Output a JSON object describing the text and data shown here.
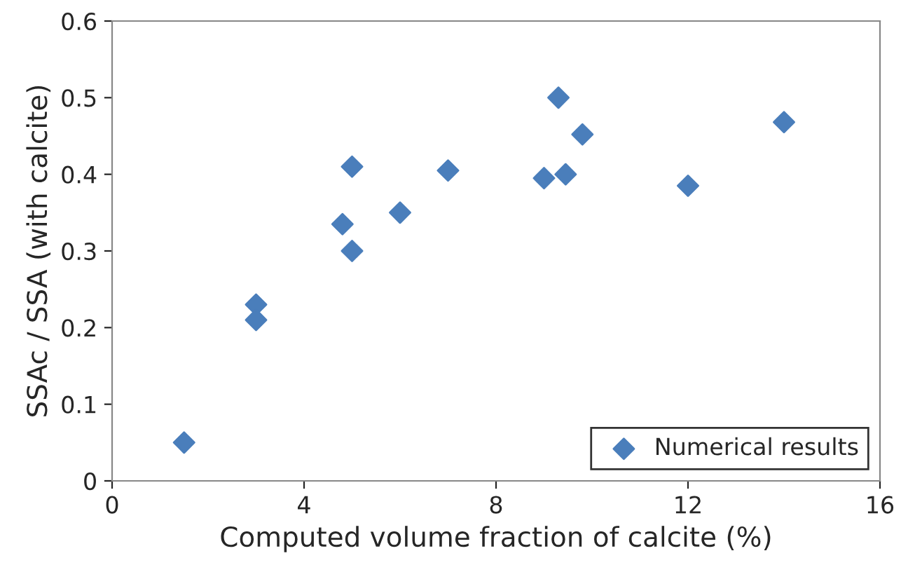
{
  "chart_data": {
    "type": "scatter",
    "xlabel": "Computed volume fraction of calcite (%)",
    "ylabel": "SSAc / SSA (with calcite)",
    "series": [
      {
        "name": "Numerical results",
        "color": "#4a7ebb",
        "x": [
          1.5,
          3,
          3,
          4.8,
          5,
          5,
          6,
          7,
          9,
          9.3,
          9.45,
          9.8,
          12,
          14
        ],
        "values": [
          0.05,
          0.23,
          0.21,
          0.335,
          0.41,
          0.3,
          0.35,
          0.405,
          0.395,
          0.5,
          0.4,
          0.452,
          0.385,
          0.468
        ]
      }
    ],
    "xlim": [
      0,
      16
    ],
    "xticks": [
      0,
      4,
      8,
      12,
      16
    ],
    "ylim": [
      0,
      0.6
    ],
    "yticks": [
      0,
      {
        "value": 0.1,
        "label": "0.1"
      },
      {
        "value": 0.2,
        "label": "0.2"
      },
      {
        "value": 0.3,
        "label": "0.3"
      },
      {
        "value": 0.4,
        "label": "0.4"
      },
      {
        "value": 0.5,
        "label": "0.5"
      },
      {
        "value": 0.6,
        "label": "0.6"
      }
    ],
    "marker": "diamond",
    "legend": "bottom right",
    "grid": false
  }
}
